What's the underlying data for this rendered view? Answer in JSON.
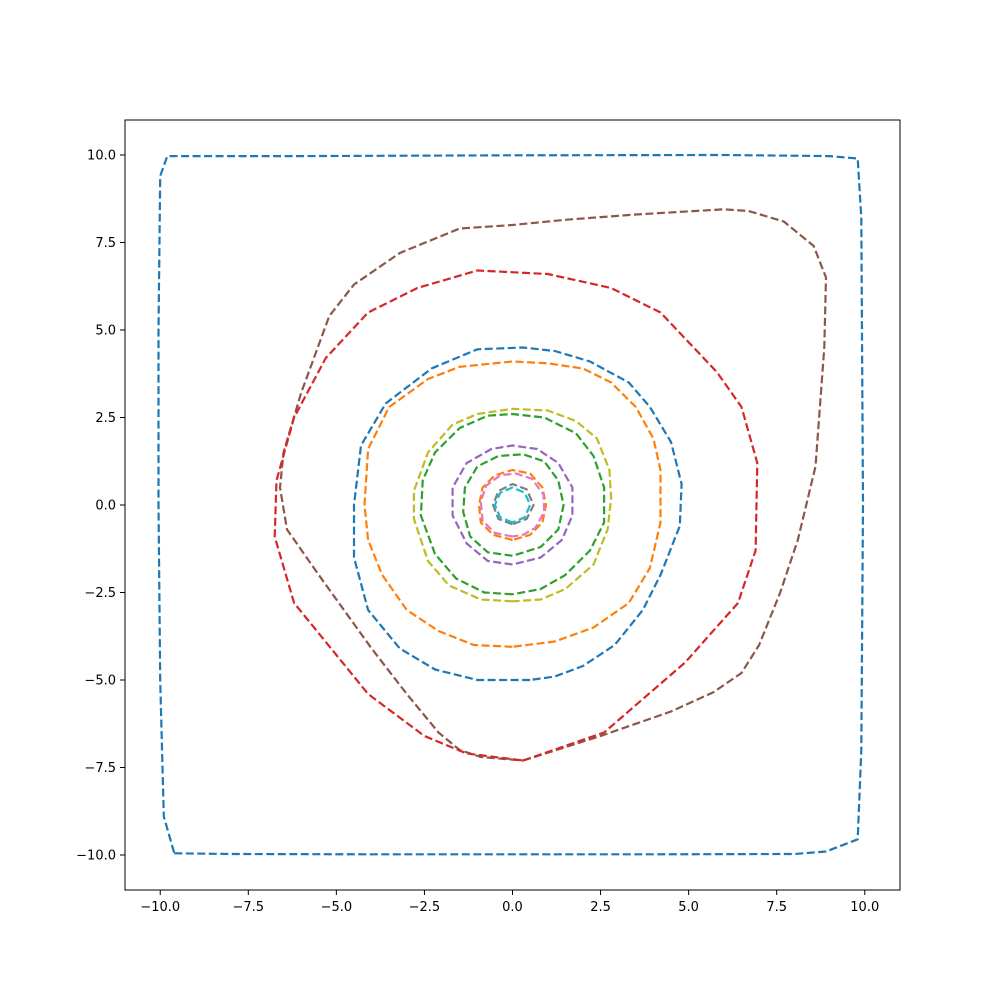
{
  "chart_data": {
    "type": "line",
    "title": "",
    "xlabel": "",
    "ylabel": "",
    "xlim": [
      -11,
      11
    ],
    "ylim": [
      -11,
      11
    ],
    "xticks": [
      -10.0,
      -7.5,
      -5.0,
      -2.5,
      0.0,
      2.5,
      5.0,
      7.5,
      10.0
    ],
    "yticks": [
      -10.0,
      -7.5,
      -5.0,
      -2.5,
      0.0,
      2.5,
      5.0,
      7.5,
      10.0
    ],
    "xtick_labels": [
      "−10.0",
      "−7.5",
      "−5.0",
      "−2.5",
      "0.0",
      "2.5",
      "5.0",
      "7.5",
      "10.0"
    ],
    "ytick_labels": [
      "−10.0",
      "−7.5",
      "−5.0",
      "−2.5",
      "0.0",
      "2.5",
      "5.0",
      "7.5",
      "10.0"
    ],
    "grid": false,
    "line_style": "dashed",
    "series": [
      {
        "color": "#1f77b4",
        "points": [
          [
            -9.6,
            -9.95
          ],
          [
            -8,
            -9.97
          ],
          [
            -4,
            -9.98
          ],
          [
            0,
            -9.98
          ],
          [
            4,
            -9.98
          ],
          [
            8,
            -9.97
          ],
          [
            8.9,
            -9.9
          ],
          [
            9.8,
            -9.55
          ],
          [
            9.9,
            -7
          ],
          [
            9.95,
            0
          ],
          [
            9.9,
            8.2
          ],
          [
            9.8,
            9.9
          ],
          [
            9,
            9.97
          ],
          [
            6,
            10
          ],
          [
            0,
            9.99
          ],
          [
            -6,
            9.97
          ],
          [
            -9.8,
            9.97
          ],
          [
            -10,
            9.4
          ],
          [
            -10.05,
            5
          ],
          [
            -10.05,
            0
          ],
          [
            -10,
            -5
          ],
          [
            -9.9,
            -8.9
          ],
          [
            -9.6,
            -9.95
          ]
        ]
      },
      {
        "color": "#8c564b",
        "points": [
          [
            0.3,
            -7.3
          ],
          [
            2.5,
            -6.6
          ],
          [
            4.5,
            -5.9
          ],
          [
            5.7,
            -5.35
          ],
          [
            6.5,
            -4.8
          ],
          [
            7,
            -4
          ],
          [
            7.6,
            -2.5
          ],
          [
            8.1,
            -1
          ],
          [
            8.6,
            1.1
          ],
          [
            8.85,
            4.5
          ],
          [
            8.9,
            6.5
          ],
          [
            8.55,
            7.4
          ],
          [
            7.7,
            8.1
          ],
          [
            6.7,
            8.4
          ],
          [
            6,
            8.45
          ],
          [
            3.5,
            8.3
          ],
          [
            1.5,
            8.15
          ],
          [
            0,
            8
          ],
          [
            -1.5,
            7.9
          ],
          [
            -3.2,
            7.2
          ],
          [
            -4.5,
            6.3
          ],
          [
            -5.2,
            5.4
          ],
          [
            -6,
            3.2
          ],
          [
            -6.5,
            1.5
          ],
          [
            -6.6,
            0.5
          ],
          [
            -6.4,
            -0.7
          ],
          [
            -5.5,
            -2
          ],
          [
            -4,
            -4.1
          ],
          [
            -3,
            -5.4
          ],
          [
            -2.1,
            -6.5
          ],
          [
            -1.5,
            -7
          ],
          [
            -0.9,
            -7.2
          ],
          [
            0.3,
            -7.3
          ]
        ]
      },
      {
        "color": "#d62728",
        "points": [
          [
            0.3,
            -7.3
          ],
          [
            2.6,
            -6.5
          ],
          [
            4.9,
            -4.5
          ],
          [
            6.4,
            -2.8
          ],
          [
            6.9,
            -1.3
          ],
          [
            6.95,
            1.2
          ],
          [
            6.5,
            2.8
          ],
          [
            5.8,
            3.8
          ],
          [
            4.2,
            5.5
          ],
          [
            2.8,
            6.2
          ],
          [
            1,
            6.6
          ],
          [
            -1,
            6.7
          ],
          [
            -2.7,
            6.2
          ],
          [
            -4.1,
            5.5
          ],
          [
            -5.3,
            4.2
          ],
          [
            -6.2,
            2.5
          ],
          [
            -6.7,
            0.7
          ],
          [
            -6.75,
            -0.9
          ],
          [
            -6.2,
            -2.8
          ],
          [
            -4.1,
            -5.4
          ],
          [
            -2.5,
            -6.6
          ],
          [
            -1.3,
            -7.1
          ],
          [
            0.3,
            -7.3
          ]
        ]
      },
      {
        "color": "#1f77b4",
        "points": [
          [
            0.5,
            -5
          ],
          [
            -1,
            -5
          ],
          [
            -2.2,
            -4.7
          ],
          [
            -3.2,
            -4.1
          ],
          [
            -4.1,
            -3
          ],
          [
            -4.5,
            -1.5
          ],
          [
            -4.5,
            0
          ],
          [
            -4.3,
            1.7
          ],
          [
            -3.6,
            2.9
          ],
          [
            -2.3,
            3.9
          ],
          [
            -1,
            4.45
          ],
          [
            0.3,
            4.5
          ],
          [
            1.2,
            4.4
          ],
          [
            2.2,
            4.1
          ],
          [
            3.3,
            3.5
          ],
          [
            3.9,
            2.8
          ],
          [
            4.5,
            1.8
          ],
          [
            4.8,
            0.6
          ],
          [
            4.75,
            -0.6
          ],
          [
            4.2,
            -2
          ],
          [
            3.7,
            -3
          ],
          [
            2.9,
            -4
          ],
          [
            2,
            -4.6
          ],
          [
            1.2,
            -4.9
          ],
          [
            0.5,
            -5
          ]
        ]
      },
      {
        "color": "#ff7f0e",
        "points": [
          [
            0,
            -4.05
          ],
          [
            -1.1,
            -4
          ],
          [
            -2.1,
            -3.6
          ],
          [
            -3,
            -3
          ],
          [
            -3.7,
            -2
          ],
          [
            -4.1,
            -1
          ],
          [
            -4.2,
            0
          ],
          [
            -4.1,
            1.6
          ],
          [
            -3.5,
            2.8
          ],
          [
            -2.4,
            3.6
          ],
          [
            -1.5,
            3.95
          ],
          [
            0,
            4.1
          ],
          [
            1,
            4.05
          ],
          [
            2,
            3.9
          ],
          [
            2.8,
            3.5
          ],
          [
            3.5,
            2.8
          ],
          [
            4,
            1.9
          ],
          [
            4.2,
            1
          ],
          [
            4.2,
            -0.5
          ],
          [
            3.9,
            -1.8
          ],
          [
            3.3,
            -2.8
          ],
          [
            2.3,
            -3.5
          ],
          [
            1.2,
            -3.9
          ],
          [
            0,
            -4.05
          ]
        ]
      },
      {
        "color": "#bcbd22",
        "points": [
          [
            0,
            -2.75
          ],
          [
            -0.9,
            -2.7
          ],
          [
            -1.8,
            -2.3
          ],
          [
            -2.4,
            -1.6
          ],
          [
            -2.8,
            -0.4
          ],
          [
            -2.8,
            0.4
          ],
          [
            -2.4,
            1.5
          ],
          [
            -1.7,
            2.3
          ],
          [
            -1,
            2.6
          ],
          [
            0,
            2.75
          ],
          [
            1,
            2.7
          ],
          [
            1.8,
            2.4
          ],
          [
            2.4,
            1.9
          ],
          [
            2.75,
            1
          ],
          [
            2.8,
            0.2
          ],
          [
            2.7,
            -0.7
          ],
          [
            2.3,
            -1.7
          ],
          [
            1.5,
            -2.4
          ],
          [
            0.8,
            -2.7
          ],
          [
            0,
            -2.75
          ]
        ]
      },
      {
        "color": "#2ca02c",
        "points": [
          [
            0,
            -2.55
          ],
          [
            -0.8,
            -2.5
          ],
          [
            -1.6,
            -2.1
          ],
          [
            -2.2,
            -1.4
          ],
          [
            -2.6,
            -0.3
          ],
          [
            -2.55,
            0.7
          ],
          [
            -2.2,
            1.5
          ],
          [
            -1.5,
            2.2
          ],
          [
            -0.7,
            2.55
          ],
          [
            0,
            2.6
          ],
          [
            0.9,
            2.5
          ],
          [
            1.8,
            2.05
          ],
          [
            2.3,
            1.4
          ],
          [
            2.6,
            0.5
          ],
          [
            2.6,
            -0.5
          ],
          [
            2.2,
            -1.3
          ],
          [
            1.5,
            -2
          ],
          [
            0.8,
            -2.4
          ],
          [
            0,
            -2.55
          ]
        ]
      },
      {
        "color": "#9467bd",
        "points": [
          [
            0,
            -1.7
          ],
          [
            -0.7,
            -1.6
          ],
          [
            -1.3,
            -1.1
          ],
          [
            -1.7,
            -0.3
          ],
          [
            -1.7,
            0.5
          ],
          [
            -1.3,
            1.2
          ],
          [
            -0.6,
            1.6
          ],
          [
            0,
            1.7
          ],
          [
            0.7,
            1.6
          ],
          [
            1.3,
            1.2
          ],
          [
            1.7,
            0.5
          ],
          [
            1.7,
            -0.3
          ],
          [
            1.4,
            -1
          ],
          [
            0.8,
            -1.5
          ],
          [
            0,
            -1.7
          ]
        ]
      },
      {
        "color": "#2ca02c",
        "points": [
          [
            0,
            -1.45
          ],
          [
            -0.7,
            -1.35
          ],
          [
            -1.2,
            -0.9
          ],
          [
            -1.4,
            -0.2
          ],
          [
            -1.35,
            0.5
          ],
          [
            -1,
            1.1
          ],
          [
            -0.4,
            1.4
          ],
          [
            0.3,
            1.45
          ],
          [
            0.9,
            1.25
          ],
          [
            1.3,
            0.7
          ],
          [
            1.45,
            0
          ],
          [
            1.3,
            -0.7
          ],
          [
            0.8,
            -1.2
          ],
          [
            0,
            -1.45
          ]
        ]
      },
      {
        "color": "#ff7f0e",
        "points": [
          [
            0,
            -1
          ],
          [
            -0.55,
            -0.85
          ],
          [
            -0.9,
            -0.5
          ],
          [
            -0.95,
            0
          ],
          [
            -0.85,
            0.5
          ],
          [
            -0.5,
            0.85
          ],
          [
            0,
            1
          ],
          [
            0.5,
            0.9
          ],
          [
            0.85,
            0.5
          ],
          [
            0.95,
            0
          ],
          [
            0.85,
            -0.5
          ],
          [
            0.5,
            -0.85
          ],
          [
            0,
            -1
          ]
        ]
      },
      {
        "color": "#e377c2",
        "points": [
          [
            0,
            -0.9
          ],
          [
            -0.5,
            -0.8
          ],
          [
            -0.85,
            -0.45
          ],
          [
            -0.9,
            0.1
          ],
          [
            -0.75,
            0.55
          ],
          [
            -0.35,
            0.85
          ],
          [
            0.1,
            0.9
          ],
          [
            0.55,
            0.75
          ],
          [
            0.88,
            0.3
          ],
          [
            0.9,
            -0.2
          ],
          [
            0.65,
            -0.65
          ],
          [
            0.3,
            -0.85
          ],
          [
            0,
            -0.9
          ]
        ]
      },
      {
        "color": "#7f7f7f",
        "points": [
          [
            0,
            -0.55
          ],
          [
            -0.4,
            -0.4
          ],
          [
            -0.55,
            0
          ],
          [
            -0.4,
            0.4
          ],
          [
            0,
            0.6
          ],
          [
            0.4,
            0.45
          ],
          [
            0.6,
            0
          ],
          [
            0.4,
            -0.4
          ],
          [
            0,
            -0.55
          ]
        ]
      },
      {
        "color": "#17becf",
        "points": [
          [
            0,
            -0.5
          ],
          [
            -0.35,
            -0.35
          ],
          [
            -0.5,
            0
          ],
          [
            -0.35,
            0.35
          ],
          [
            0,
            0.5
          ],
          [
            0.35,
            0.35
          ],
          [
            0.5,
            0
          ],
          [
            0.35,
            -0.35
          ],
          [
            0,
            -0.5
          ]
        ]
      }
    ]
  }
}
